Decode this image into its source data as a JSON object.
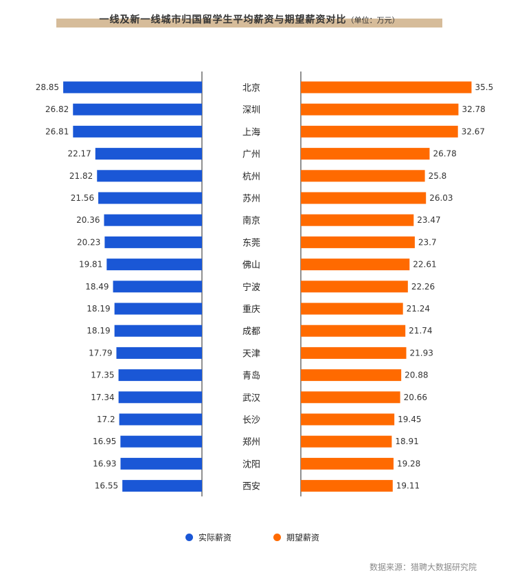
{
  "title": "一线及新一线城市归国留学生平均薪资与期望薪资对比",
  "title_unit": "（单位：万元）",
  "source": "数据来源：猎聘大数据研究院",
  "colors": {
    "actual": "#1a57d6",
    "expected": "#ff6a00",
    "axis": "#222222"
  },
  "chart_data": {
    "type": "bar",
    "categories": [
      "北京",
      "深圳",
      "上海",
      "广州",
      "杭州",
      "苏州",
      "南京",
      "东莞",
      "佛山",
      "宁波",
      "重庆",
      "成都",
      "天津",
      "青岛",
      "武汉",
      "长沙",
      "郑州",
      "沈阳",
      "西安"
    ],
    "series": [
      {
        "name": "实际薪资",
        "values": [
          28.85,
          26.82,
          26.81,
          22.17,
          21.82,
          21.56,
          20.36,
          20.23,
          19.81,
          18.49,
          18.19,
          18.19,
          17.79,
          17.35,
          17.34,
          17.2,
          16.95,
          16.93,
          16.55
        ]
      },
      {
        "name": "期望薪资",
        "values": [
          35.5,
          32.78,
          32.67,
          26.78,
          25.8,
          26.03,
          23.47,
          23.7,
          22.61,
          22.26,
          21.24,
          21.74,
          21.93,
          20.88,
          20.66,
          19.45,
          18.91,
          19.28,
          19.11
        ]
      }
    ],
    "legend": [
      "实际薪资",
      "期望薪资"
    ],
    "legend_position": "bottom",
    "grid": false
  }
}
